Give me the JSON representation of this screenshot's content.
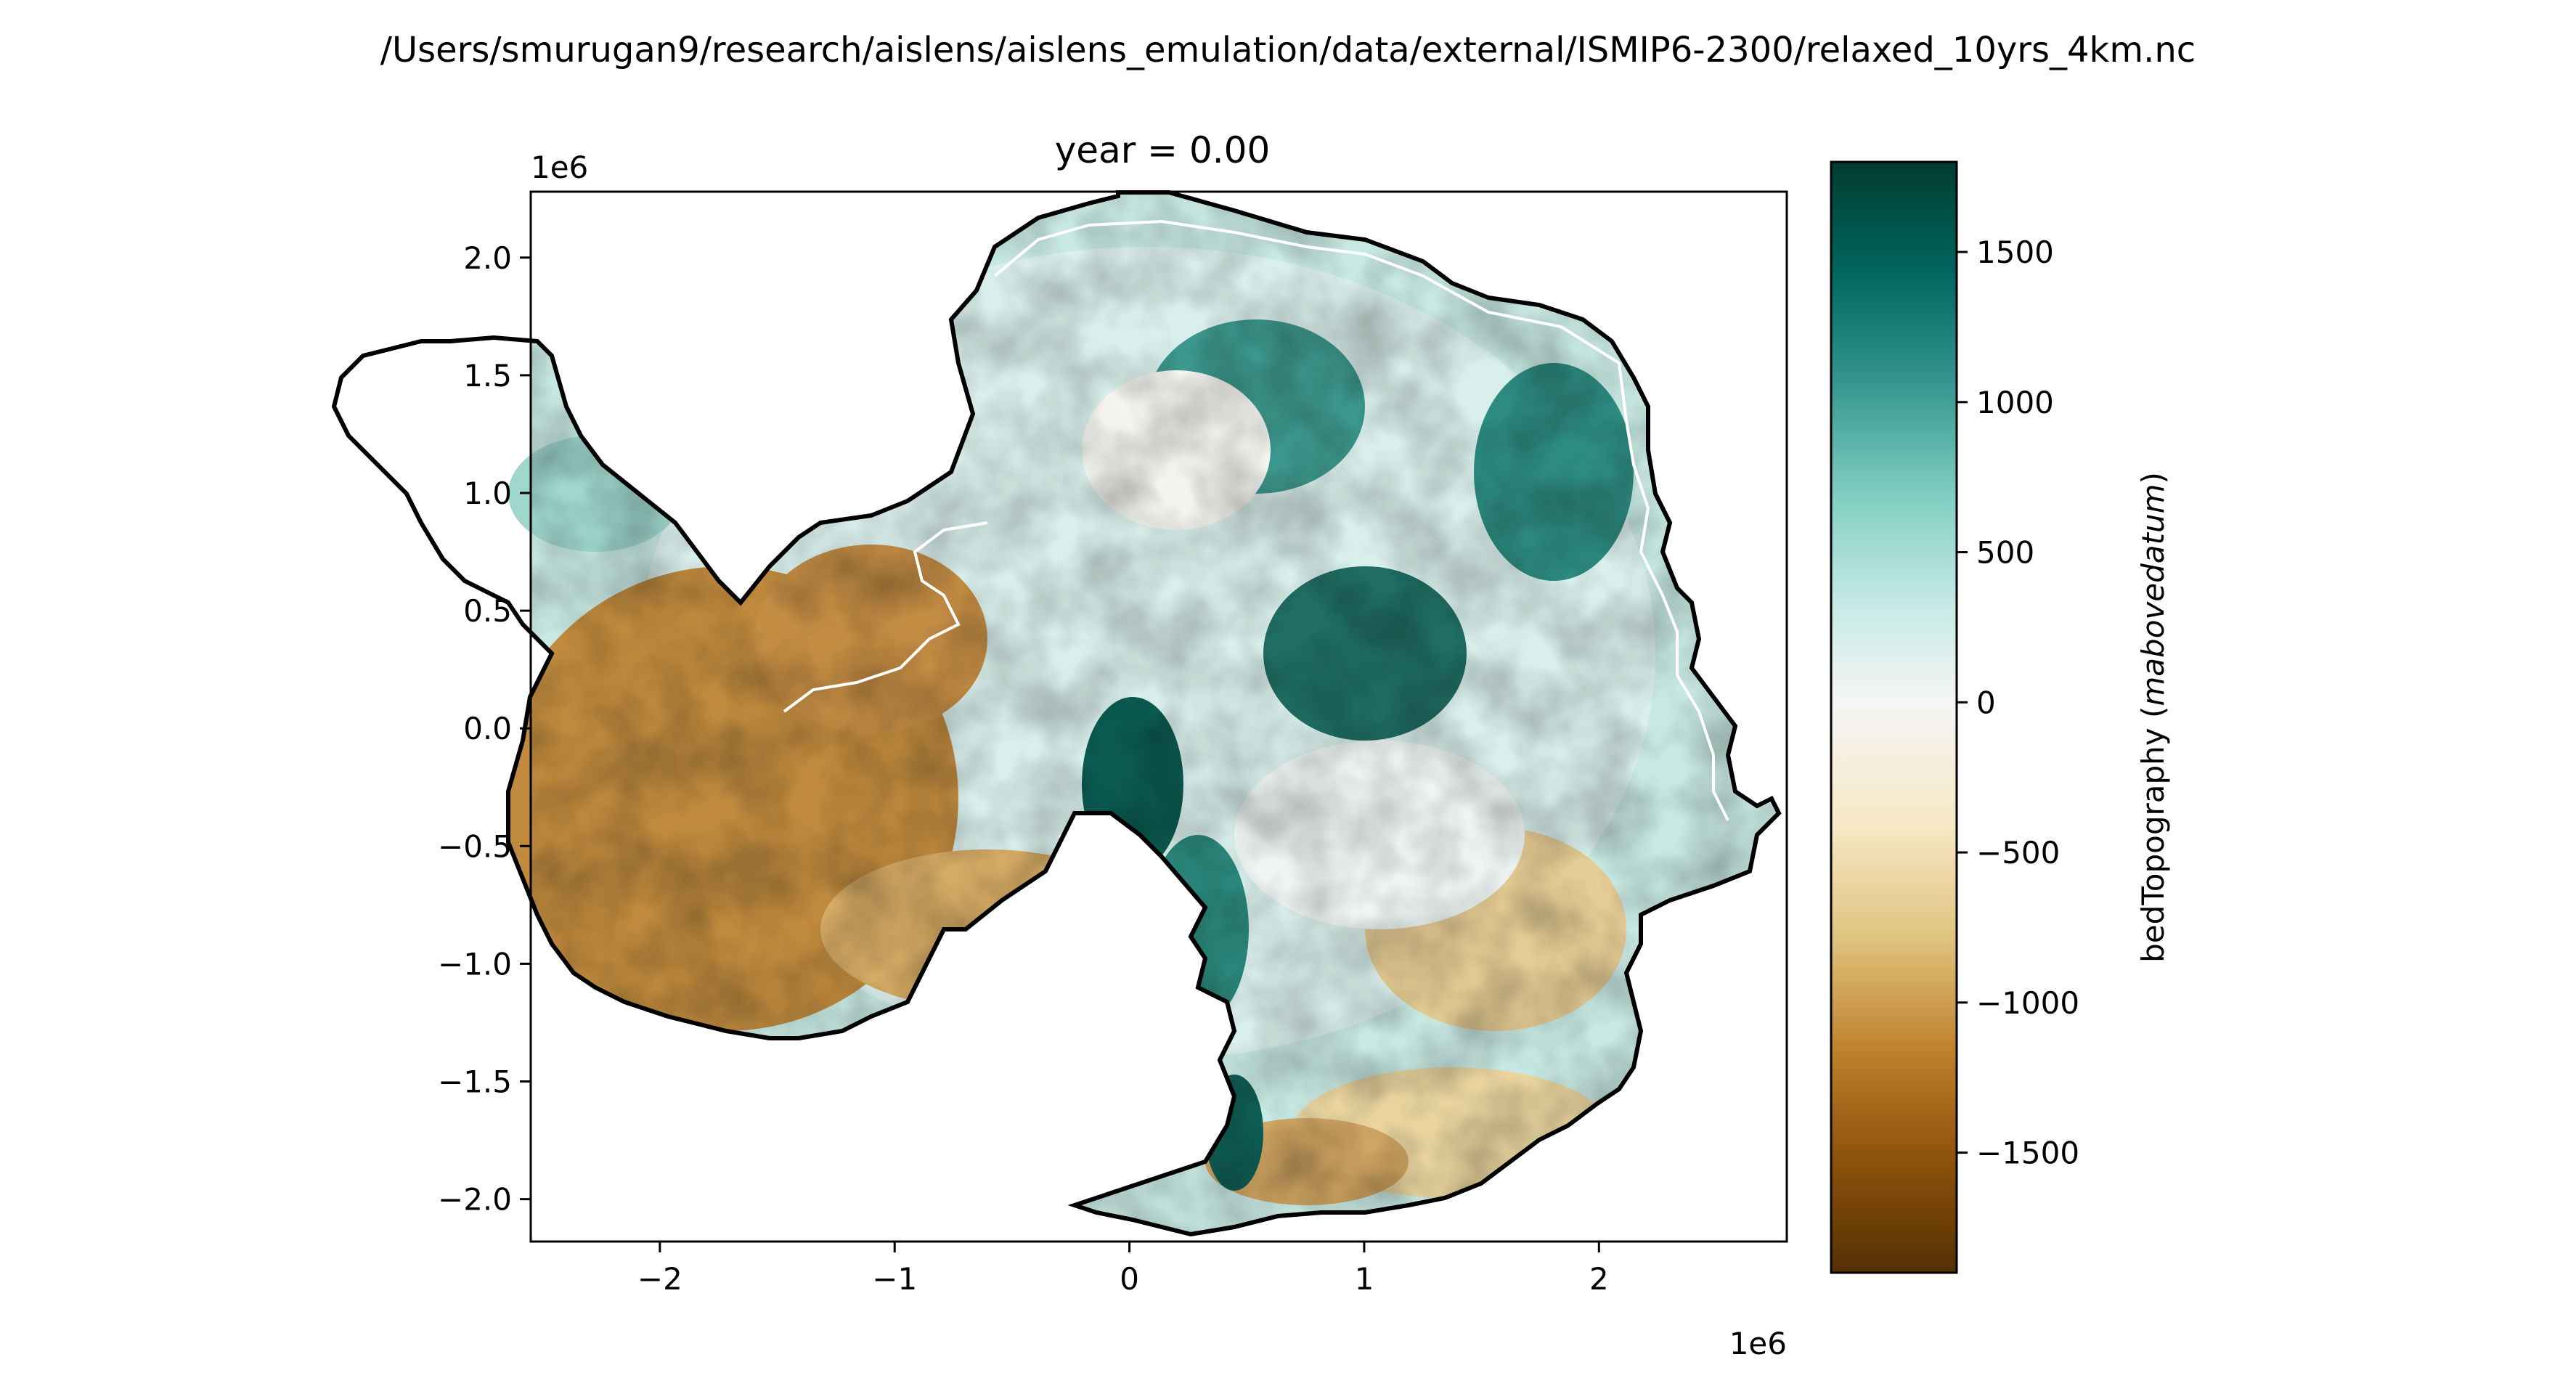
{
  "figure": {
    "suptitle": "/Users/smurugan9/research/aislens/aislens_emulation/data/external/ISMIP6-2300/relaxed_10yrs_4km.nc"
  },
  "chart_data": {
    "type": "heatmap",
    "title": "year = 0.00",
    "xlabel": "",
    "ylabel": "",
    "x_offset_label": "1e6",
    "y_offset_label": "1e6",
    "xlim": [
      -2.55,
      2.8
    ],
    "ylim": [
      -2.18,
      2.28
    ],
    "xticks": [
      -2,
      -1,
      0,
      1,
      2
    ],
    "xtick_labels": [
      "−2",
      "−1",
      "0",
      "1",
      "2"
    ],
    "yticks": [
      -2.0,
      -1.5,
      -1.0,
      -0.5,
      0.0,
      0.5,
      1.0,
      1.5,
      2.0
    ],
    "ytick_labels": [
      "−2.0",
      "−1.5",
      "−1.0",
      "−0.5",
      "0.0",
      "0.5",
      "1.0",
      "1.5",
      "2.0"
    ],
    "colormap": "BrBG",
    "colormap_stops": [
      "#543005",
      "#8c510a",
      "#bf812d",
      "#dfc27d",
      "#f6e8c3",
      "#f5f5f5",
      "#c7eae5",
      "#80cdc1",
      "#35978f",
      "#01665e",
      "#003c30"
    ],
    "colorbar": {
      "label": "bedTopography (mabovedatum)",
      "label_main": "bedTopography (",
      "label_unit": "mabovedatum",
      "label_close": ")",
      "vmin": -1900,
      "vmax": 1800,
      "ticks": [
        1500,
        1000,
        500,
        0,
        -500,
        -1000,
        -1500
      ],
      "tick_labels": [
        "1500",
        "1000",
        "500",
        "0",
        "−500",
        "−1000",
        "−1500"
      ]
    },
    "contours": [
      {
        "name": "grounding line",
        "color": "#ffffff"
      },
      {
        "name": "ice-shelf front",
        "color": "#000000"
      }
    ],
    "grid": false
  }
}
